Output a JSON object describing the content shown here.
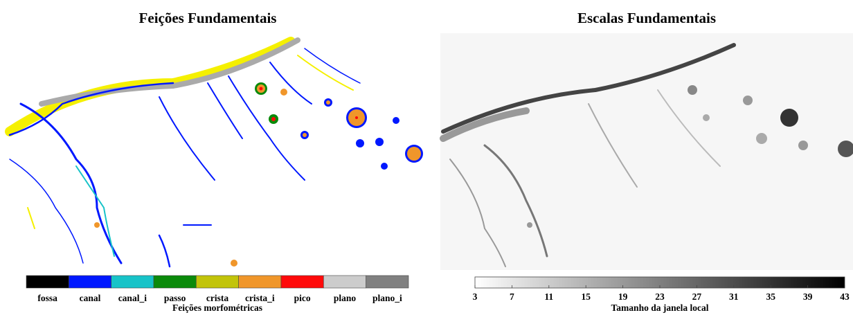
{
  "panels": [
    {
      "title": "Feições Fundamentais",
      "legend": {
        "title": "Feições morfométricas",
        "categories": [
          {
            "label": "fossa",
            "color": "#000000"
          },
          {
            "label": "canal",
            "color": "#0018ff"
          },
          {
            "label": "canal_i",
            "color": "#17c3c8"
          },
          {
            "label": "passo",
            "color": "#0b8a0b"
          },
          {
            "label": "crista",
            "color": "#c2c40a"
          },
          {
            "label": "crista_i",
            "color": "#f0962a"
          },
          {
            "label": "pico",
            "color": "#ff0a0a"
          },
          {
            "label": "plano",
            "color": "#cccccc"
          },
          {
            "label": "plano_i",
            "color": "#808080"
          }
        ]
      }
    },
    {
      "title": "Escalas Fundamentais",
      "colorbar": {
        "title": "Tamanho da janela local",
        "lim": [
          3,
          43
        ],
        "ticks": [
          3,
          7,
          11,
          15,
          19,
          23,
          27,
          31,
          35,
          39,
          43
        ],
        "colors": [
          "#ffffff",
          "#000000"
        ]
      }
    }
  ]
}
